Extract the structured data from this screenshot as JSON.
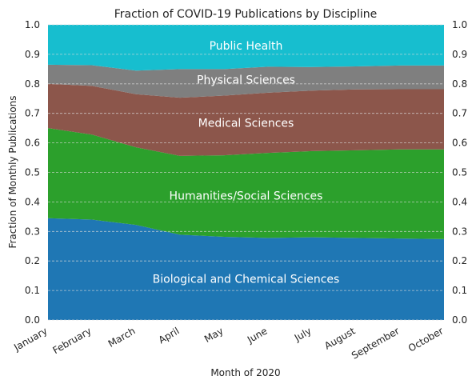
{
  "chart_data": {
    "type": "area",
    "stacked": true,
    "title": "Fraction of COVID-19 Publications by Discipline",
    "xlabel": "Month of 2020",
    "ylabel": "Fraction of Monthly Publications",
    "categories": [
      "January",
      "February",
      "March",
      "April",
      "May",
      "June",
      "July",
      "August",
      "September",
      "October"
    ],
    "ylim": [
      0,
      1
    ],
    "yticks": [
      "0.0",
      "0.1",
      "0.2",
      "0.3",
      "0.4",
      "0.5",
      "0.6",
      "0.7",
      "0.8",
      "0.9",
      "1.0"
    ],
    "grid": true,
    "legend": "labels drawn inside areas",
    "series": [
      {
        "name": "Biological and Chemical Sciences",
        "color": "#1f77b4",
        "values": [
          0.345,
          0.34,
          0.322,
          0.289,
          0.282,
          0.278,
          0.28,
          0.278,
          0.276,
          0.274
        ]
      },
      {
        "name": "Humanities/Social Sciences",
        "color": "#2ca02c",
        "values": [
          0.305,
          0.288,
          0.263,
          0.267,
          0.276,
          0.288,
          0.292,
          0.297,
          0.302,
          0.304
        ]
      },
      {
        "name": "Medical Sciences",
        "color": "#8c564b",
        "values": [
          0.15,
          0.165,
          0.18,
          0.197,
          0.202,
          0.204,
          0.205,
          0.206,
          0.204,
          0.204
        ]
      },
      {
        "name": "Physical Sciences",
        "color": "#7f7f7f",
        "values": [
          0.065,
          0.07,
          0.08,
          0.097,
          0.09,
          0.088,
          0.08,
          0.078,
          0.08,
          0.08
        ]
      },
      {
        "name": "Public Health",
        "color": "#17becf",
        "values": [
          0.135,
          0.137,
          0.155,
          0.15,
          0.15,
          0.142,
          0.143,
          0.141,
          0.138,
          0.138
        ]
      }
    ]
  }
}
